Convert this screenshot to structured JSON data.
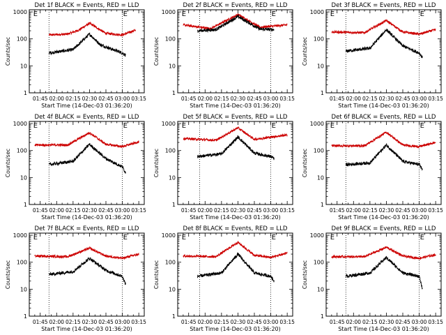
{
  "chart_data": [
    {
      "type": "line",
      "title": "Det 1f BLACK = Events, RED = LLD",
      "ylabel": "Counts/sec",
      "xlabel": "Start Time (14-Dec-03 01:36:20)",
      "x_ticks": [
        "01:45",
        "02:00",
        "02:15",
        "02:30",
        "02:45",
        "03:00",
        "03:15"
      ],
      "y_ticks": [
        "1",
        "10",
        "100",
        "1000"
      ],
      "ylim": [
        1,
        1200
      ],
      "yscale": "log",
      "markers": [
        {
          "x": "01:38",
          "label": "E"
        },
        {
          "x": "03:00",
          "label": "E"
        }
      ],
      "vlines": [
        "01:53",
        "03:00"
      ],
      "series": [
        {
          "color": "#cc0000",
          "points": [
            [
              "01:53",
              140
            ],
            [
              "02:10",
              150
            ],
            [
              "02:20",
              210
            ],
            [
              "02:30",
              380
            ],
            [
              "02:45",
              160
            ],
            [
              "03:00",
              140
            ],
            [
              "03:12",
              210
            ]
          ]
        },
        {
          "color": "#000000",
          "points": [
            [
              "01:53",
              30
            ],
            [
              "02:15",
              40
            ],
            [
              "02:30",
              150
            ],
            [
              "02:40",
              60
            ],
            [
              "03:00",
              30
            ],
            [
              "03:03",
              25
            ]
          ]
        }
      ]
    },
    {
      "type": "line",
      "title": "Det 2f BLACK = Events, RED = LLD",
      "ylabel": "Counts/sec",
      "xlabel": "Start Time (14-Dec-03 01:36:20)",
      "x_ticks": [
        "01:45",
        "02:00",
        "02:15",
        "02:30",
        "02:45",
        "03:00",
        "03:15"
      ],
      "y_ticks": [
        "1",
        "10",
        "100",
        "1000"
      ],
      "ylim": [
        1,
        1200
      ],
      "yscale": "log",
      "markers": [
        {
          "x": "01:38",
          "label": "E"
        },
        {
          "x": "03:00",
          "label": "E"
        }
      ],
      "vlines": [
        "01:55",
        "03:00"
      ],
      "series": [
        {
          "color": "#cc0000",
          "points": [
            [
              "01:40",
              330
            ],
            [
              "02:05",
              240
            ],
            [
              "02:30",
              800
            ],
            [
              "02:50",
              270
            ],
            [
              "03:15",
              330
            ]
          ]
        },
        {
          "color": "#000000",
          "points": [
            [
              "01:53",
              200
            ],
            [
              "02:10",
              220
            ],
            [
              "02:30",
              680
            ],
            [
              "02:50",
              230
            ],
            [
              "03:03",
              220
            ]
          ]
        }
      ]
    },
    {
      "type": "line",
      "title": "Det 3f BLACK = Events, RED = LLD",
      "ylabel": "Counts/sec",
      "xlabel": "Start Time (14-Dec-03 01:36:20)",
      "x_ticks": [
        "01:45",
        "02:00",
        "02:15",
        "02:30",
        "02:45",
        "03:00",
        "03:15"
      ],
      "y_ticks": [
        "1",
        "10",
        "100",
        "1000"
      ],
      "ylim": [
        1,
        1200
      ],
      "yscale": "log",
      "markers": [
        {
          "x": "01:38",
          "label": "E"
        },
        {
          "x": "03:00",
          "label": "E"
        }
      ],
      "vlines": [
        "01:53",
        "03:00"
      ],
      "series": [
        {
          "color": "#cc0000",
          "points": [
            [
              "01:40",
              180
            ],
            [
              "02:10",
              170
            ],
            [
              "02:30",
              480
            ],
            [
              "02:45",
              180
            ],
            [
              "03:00",
              150
            ],
            [
              "03:15",
              220
            ]
          ]
        },
        {
          "color": "#000000",
          "points": [
            [
              "01:53",
              35
            ],
            [
              "02:15",
              45
            ],
            [
              "02:30",
              220
            ],
            [
              "02:45",
              55
            ],
            [
              "03:00",
              30
            ],
            [
              "03:03",
              20
            ]
          ]
        }
      ]
    },
    {
      "type": "line",
      "title": "Det 4f BLACK = Events, RED = LLD",
      "ylabel": "Counts/sec",
      "xlabel": "Start Time (14-Dec-03 01:36:20)",
      "x_ticks": [
        "01:45",
        "02:00",
        "02:15",
        "02:30",
        "02:45",
        "03:00",
        "03:15"
      ],
      "y_ticks": [
        "1",
        "10",
        "100",
        "1000"
      ],
      "ylim": [
        1,
        1200
      ],
      "yscale": "log",
      "markers": [
        {
          "x": "01:38",
          "label": "E"
        },
        {
          "x": "03:00",
          "label": "E"
        }
      ],
      "vlines": [
        "01:53",
        "03:00"
      ],
      "series": [
        {
          "color": "#cc0000",
          "points": [
            [
              "01:40",
              160
            ],
            [
              "02:10",
              160
            ],
            [
              "02:30",
              460
            ],
            [
              "02:45",
              170
            ],
            [
              "03:00",
              140
            ],
            [
              "03:15",
              210
            ]
          ]
        },
        {
          "color": "#000000",
          "points": [
            [
              "01:53",
              30
            ],
            [
              "02:15",
              40
            ],
            [
              "02:30",
              170
            ],
            [
              "02:45",
              50
            ],
            [
              "03:00",
              25
            ],
            [
              "03:03",
              15
            ]
          ]
        }
      ]
    },
    {
      "type": "line",
      "title": "Det 5f BLACK = Events, RED = LLD",
      "ylabel": "Counts/sec",
      "xlabel": "Start Time (14-Dec-03 01:36:20)",
      "x_ticks": [
        "01:45",
        "02:00",
        "02:15",
        "02:30",
        "02:45",
        "03:00",
        "03:15"
      ],
      "y_ticks": [
        "1",
        "10",
        "100",
        "1000"
      ],
      "ylim": [
        1,
        1200
      ],
      "yscale": "log",
      "markers": [
        {
          "x": "01:38",
          "label": "E"
        },
        {
          "x": "03:00",
          "label": "E"
        }
      ],
      "vlines": [
        "01:55",
        "03:00"
      ],
      "series": [
        {
          "color": "#cc0000",
          "points": [
            [
              "01:40",
              280
            ],
            [
              "02:10",
              240
            ],
            [
              "02:30",
              700
            ],
            [
              "02:45",
              260
            ],
            [
              "03:15",
              380
            ]
          ]
        },
        {
          "color": "#000000",
          "points": [
            [
              "01:53",
              60
            ],
            [
              "02:15",
              75
            ],
            [
              "02:30",
              320
            ],
            [
              "02:45",
              80
            ],
            [
              "03:00",
              60
            ],
            [
              "03:03",
              50
            ]
          ]
        }
      ]
    },
    {
      "type": "line",
      "title": "Det 6f BLACK = Events, RED = LLD",
      "ylabel": "Counts/sec",
      "xlabel": "Start Time (14-Dec-03 01:36:20)",
      "x_ticks": [
        "01:45",
        "02:00",
        "02:15",
        "02:30",
        "02:45",
        "03:00",
        "03:15"
      ],
      "y_ticks": [
        "1",
        "10",
        "100",
        "1000"
      ],
      "ylim": [
        1,
        1200
      ],
      "yscale": "log",
      "markers": [
        {
          "x": "01:38",
          "label": "E"
        },
        {
          "x": "03:00",
          "label": "E"
        }
      ],
      "vlines": [
        "01:53",
        "03:00"
      ],
      "series": [
        {
          "color": "#cc0000",
          "points": [
            [
              "01:40",
              150
            ],
            [
              "02:10",
              150
            ],
            [
              "02:30",
              480
            ],
            [
              "02:45",
              160
            ],
            [
              "03:00",
              140
            ],
            [
              "03:15",
              200
            ]
          ]
        },
        {
          "color": "#000000",
          "points": [
            [
              "01:53",
              30
            ],
            [
              "02:15",
              35
            ],
            [
              "02:30",
              160
            ],
            [
              "02:45",
              40
            ],
            [
              "03:00",
              30
            ],
            [
              "03:03",
              20
            ]
          ]
        }
      ]
    },
    {
      "type": "line",
      "title": "Det 7f BLACK = Events, RED = LLD",
      "ylabel": "Counts/sec",
      "xlabel": "Start Time (14-Dec-03 01:36:20)",
      "x_ticks": [
        "01:45",
        "02:00",
        "02:15",
        "02:30",
        "02:45",
        "03:00",
        "03:15"
      ],
      "y_ticks": [
        "1",
        "10",
        "100",
        "1000"
      ],
      "ylim": [
        1,
        1200
      ],
      "yscale": "log",
      "markers": [
        {
          "x": "01:38",
          "label": "E"
        },
        {
          "x": "03:00",
          "label": "E"
        }
      ],
      "vlines": [
        "01:53",
        "03:00"
      ],
      "series": [
        {
          "color": "#cc0000",
          "points": [
            [
              "01:40",
              170
            ],
            [
              "02:10",
              160
            ],
            [
              "02:30",
              330
            ],
            [
              "02:45",
              170
            ],
            [
              "03:00",
              140
            ],
            [
              "03:15",
              200
            ]
          ]
        },
        {
          "color": "#000000",
          "points": [
            [
              "01:53",
              35
            ],
            [
              "02:15",
              45
            ],
            [
              "02:30",
              140
            ],
            [
              "02:45",
              50
            ],
            [
              "03:00",
              30
            ],
            [
              "03:03",
              15
            ]
          ]
        }
      ]
    },
    {
      "type": "line",
      "title": "Det 8f BLACK = Events, RED = LLD",
      "ylabel": "Counts/sec",
      "xlabel": "Start Time (14-Dec-03 01:36:20)",
      "x_ticks": [
        "01:45",
        "02:00",
        "02:15",
        "02:30",
        "02:45",
        "03:00",
        "03:15"
      ],
      "y_ticks": [
        "1",
        "10",
        "100",
        "1000"
      ],
      "ylim": [
        1,
        1200
      ],
      "yscale": "log",
      "markers": [
        {
          "x": "01:38",
          "label": "E"
        },
        {
          "x": "03:00",
          "label": "E"
        }
      ],
      "vlines": [
        "01:55",
        "03:00"
      ],
      "series": [
        {
          "color": "#cc0000",
          "points": [
            [
              "01:40",
              170
            ],
            [
              "02:10",
              160
            ],
            [
              "02:30",
              550
            ],
            [
              "02:45",
              180
            ],
            [
              "03:00",
              150
            ],
            [
              "03:15",
              220
            ]
          ]
        },
        {
          "color": "#000000",
          "points": [
            [
              "01:53",
              30
            ],
            [
              "02:15",
              40
            ],
            [
              "02:30",
              200
            ],
            [
              "02:45",
              40
            ],
            [
              "03:00",
              30
            ],
            [
              "03:03",
              20
            ]
          ]
        }
      ]
    },
    {
      "type": "line",
      "title": "Det 9f BLACK = Events, RED = LLD",
      "ylabel": "Counts/sec",
      "xlabel": "Start Time (14-Dec-03 01:36:20)",
      "x_ticks": [
        "01:45",
        "02:00",
        "02:15",
        "02:30",
        "02:45",
        "03:00",
        "03:15"
      ],
      "y_ticks": [
        "1",
        "10",
        "100",
        "1000"
      ],
      "ylim": [
        1,
        1200
      ],
      "yscale": "log",
      "markers": [
        {
          "x": "01:38",
          "label": "E"
        },
        {
          "x": "03:00",
          "label": "E"
        }
      ],
      "vlines": [
        "01:53",
        "03:00"
      ],
      "series": [
        {
          "color": "#cc0000",
          "points": [
            [
              "01:40",
              160
            ],
            [
              "02:10",
              160
            ],
            [
              "02:30",
              360
            ],
            [
              "02:45",
              170
            ],
            [
              "03:00",
              140
            ],
            [
              "03:15",
              190
            ]
          ]
        },
        {
          "color": "#000000",
          "points": [
            [
              "01:53",
              30
            ],
            [
              "02:15",
              40
            ],
            [
              "02:30",
              150
            ],
            [
              "02:45",
              40
            ],
            [
              "03:00",
              30
            ],
            [
              "03:03",
              10
            ]
          ]
        }
      ]
    }
  ]
}
